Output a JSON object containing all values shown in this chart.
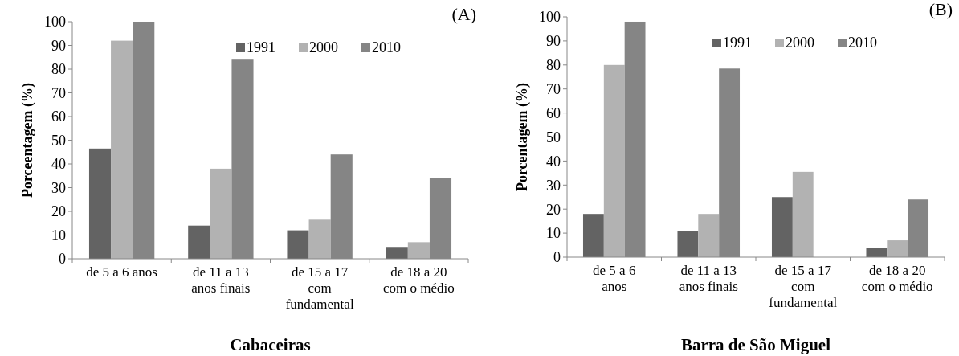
{
  "chart_data": [
    {
      "type": "bar",
      "title": "(A)",
      "xlabel": "Cabaceiras",
      "ylabel": "Porceentagem (%)",
      "categories": [
        "de 5 a 6 anos",
        "de 11 a 13\nanos finais",
        "de 15 a 17\ncom\nfundamental",
        "de 18 a 20\ncom o médio"
      ],
      "series": [
        {
          "name": "1991",
          "color": "#636363",
          "values": [
            46.5,
            14,
            12,
            5
          ]
        },
        {
          "name": "2000",
          "color": "#b2b2b2",
          "values": [
            92,
            38,
            16.5,
            7
          ]
        },
        {
          "name": "2010",
          "color": "#858585",
          "values": [
            100,
            84,
            44,
            34
          ]
        }
      ],
      "ylim": [
        0,
        100
      ],
      "yticks": [
        0,
        10,
        20,
        30,
        40,
        50,
        60,
        70,
        80,
        90,
        100
      ],
      "legend": "top right"
    },
    {
      "type": "bar",
      "title": "(B)",
      "xlabel": "Barra de São Miguel",
      "ylabel": "Porcentagem (%)",
      "categories": [
        "de 5 a 6\nanos",
        "de 11 a 13\nanos finais",
        "de 15 a 17\ncom\nfundamental",
        "de 18 a 20\ncom o médio"
      ],
      "series": [
        {
          "name": "1991",
          "color": "#636363",
          "values": [
            18,
            11,
            25,
            4
          ]
        },
        {
          "name": "2000",
          "color": "#b2b2b2",
          "values": [
            80,
            18,
            35.5,
            7
          ]
        },
        {
          "name": "2010",
          "color": "#858585",
          "values": [
            98,
            78.5,
            null,
            24
          ]
        }
      ],
      "ylim": [
        0,
        100
      ],
      "yticks": [
        0,
        10,
        20,
        30,
        40,
        50,
        60,
        70,
        80,
        90,
        100
      ],
      "legend": "top right"
    }
  ]
}
